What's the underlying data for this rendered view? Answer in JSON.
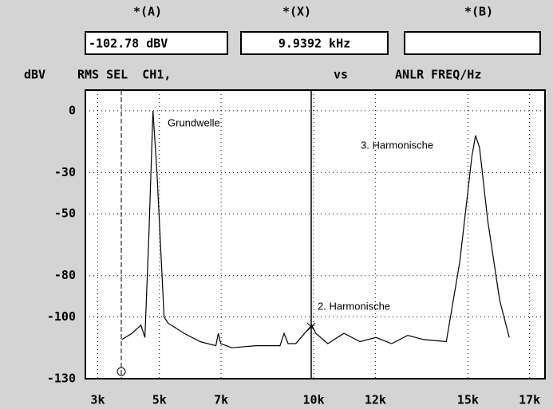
{
  "header": {
    "cursor_a": "*(A)",
    "cursor_x": "*(X)",
    "cursor_b": "*(B)",
    "readout_a": "-102.78 dBV",
    "readout_x": "9.9392 kHz",
    "left_info": "RMS SEL  CH1,",
    "vs": "vs",
    "right_info": "ANLR FREQ/Hz"
  },
  "chart_data": {
    "type": "line",
    "ylabel": "dBV",
    "x": [
      3.78,
      4.11,
      4.4,
      4.53,
      4.66,
      4.79,
      4.92,
      5.15,
      5.28,
      5.8,
      6.32,
      6.83,
      6.91,
      6.99,
      7.35,
      8.13,
      8.91,
      9.04,
      9.17,
      9.42,
      9.94,
      10.07,
      10.46,
      10.98,
      11.5,
      12.02,
      12.53,
      13.05,
      13.57,
      14.3,
      14.74,
      15.13,
      15.25,
      15.38,
      15.64,
      16.03,
      16.34
    ],
    "series": [
      {
        "name": "CH1",
        "color": "#000000",
        "values": [
          -111,
          -108,
          -104,
          -110,
          -60,
          0,
          -30,
          -100,
          -103,
          -108,
          -112,
          -114,
          -108,
          -113,
          -115,
          -114,
          -114,
          -108,
          -113,
          -113,
          -104,
          -108,
          -113,
          -108,
          -112,
          -110,
          -113,
          -109,
          -111,
          -112,
          -73,
          -22,
          -12,
          -18,
          -53,
          -92,
          -110
        ]
      }
    ],
    "xlim": [
      2.6,
      17.5
    ],
    "ylim": [
      -130,
      10
    ],
    "xticks": [
      {
        "value": 3,
        "label": "3k"
      },
      {
        "value": 5,
        "label": "5k"
      },
      {
        "value": 7,
        "label": "7k"
      },
      {
        "value": 10,
        "label": "10k"
      },
      {
        "value": 12,
        "label": "12k"
      },
      {
        "value": 15,
        "label": "15k"
      },
      {
        "value": 17,
        "label": "17k"
      }
    ],
    "yticks": [
      0,
      -30,
      -50,
      -80,
      -100,
      -130
    ],
    "grid": true,
    "annotations": [
      "Grundwelle",
      "2. Harmonische",
      "3. Harmonische"
    ]
  }
}
